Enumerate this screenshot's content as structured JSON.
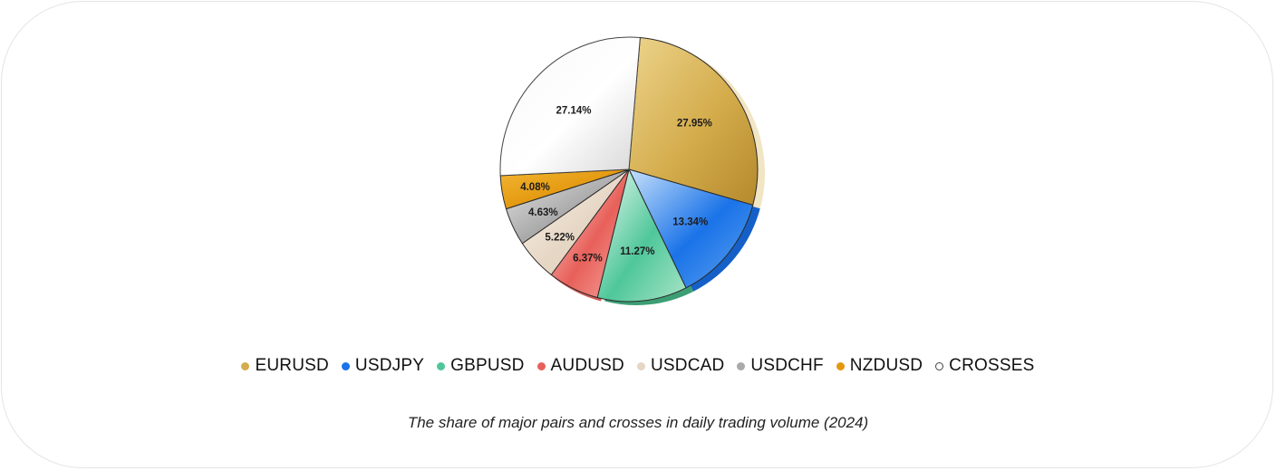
{
  "chart_data": {
    "type": "pie",
    "caption": "The share of major pairs and crosses in daily trading volume (2024)",
    "legend_position": "bottom",
    "slices": [
      {
        "name": "EURUSD",
        "value": 27.95,
        "label": "27.95%",
        "color": "#d4ac4c",
        "light": "#ecd48c",
        "dark": "#b48a2c",
        "side": "#f1e5c4"
      },
      {
        "name": "USDJPY",
        "value": 13.34,
        "label": "13.34%",
        "color": "#1a73e8",
        "light": "#c6e0fb",
        "dark": "#5fa2f0",
        "side": "#1560c8"
      },
      {
        "name": "GBPUSD",
        "value": 11.27,
        "label": "11.27%",
        "color": "#4fc79a",
        "light": "#eefaf3",
        "dark": "#a8e4c6",
        "side": "#3c9f74"
      },
      {
        "name": "AUDUSD",
        "value": 6.37,
        "label": "6.37%",
        "color": "#e8605a",
        "light": "#fde0dc",
        "dark": "#f6a8a0",
        "side": "#cc5a55"
      },
      {
        "name": "USDCAD",
        "value": 5.22,
        "label": "5.22%",
        "color": "#e6d6c4",
        "light": "#fbf5ee",
        "dark": "#ead9c6",
        "side": "#c4ab92"
      },
      {
        "name": "USDCHF",
        "value": 4.63,
        "label": "4.63%",
        "color": "#a9a9a9",
        "light": "#e6e6e6",
        "dark": "#bdbdbd",
        "side": "#8a8a8a"
      },
      {
        "name": "NZDUSD",
        "value": 4.08,
        "label": "4.08%",
        "color": "#e3980e",
        "light": "#f3b533",
        "dark": "#d98a0a",
        "side": "#b8720a"
      },
      {
        "name": "CROSSES",
        "value": 27.14,
        "label": "27.14%",
        "color": "#ffffff",
        "light": "#f7f7f7",
        "dark": "#d6d6d6",
        "side": "#e2e2e2",
        "outline": "#444444"
      }
    ]
  }
}
